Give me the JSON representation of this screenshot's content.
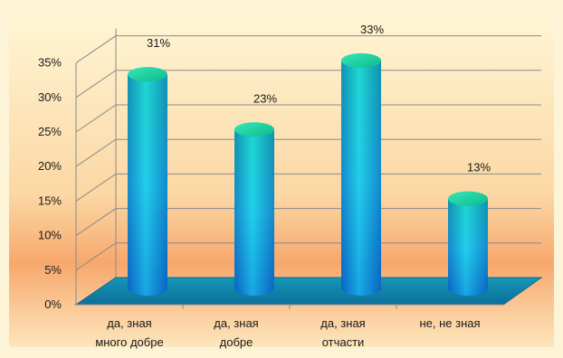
{
  "chart_data": {
    "type": "bar",
    "categories": [
      [
        "да, зная",
        "много добре"
      ],
      [
        "да, зная",
        "добре"
      ],
      [
        "да, зная",
        "отчасти"
      ],
      [
        "не, не зная"
      ]
    ],
    "values": [
      31,
      23,
      33,
      13
    ],
    "data_labels": [
      "31%",
      "23%",
      "33%",
      "13%"
    ],
    "y_ticks": [
      "0%",
      "5%",
      "10%",
      "15%",
      "20%",
      "25%",
      "30%",
      "35%"
    ],
    "ylim": [
      0,
      35
    ],
    "grid": true,
    "style": "3d-cylinder",
    "colors": {
      "bar_top": "#19d9a6",
      "bar_mid": "#21c6e6",
      "bar_bottom": "#0a6fd0",
      "floor": "#0f86a8",
      "background_top": "#fff6d6",
      "background_bottom": "#f7a86c",
      "frame": "#fdf3d6"
    }
  }
}
